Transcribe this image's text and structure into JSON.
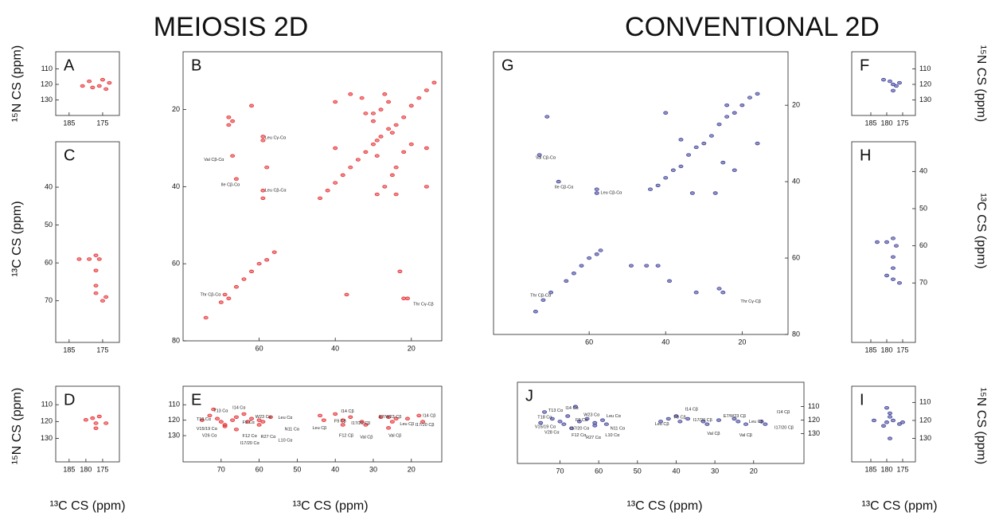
{
  "headers": [
    "MEIOSIS 2D",
    "CONVENTIONAL 2D"
  ],
  "axis_labels": {
    "n15": "¹⁵N CS (ppm)",
    "c13": "¹³C CS (ppm)"
  },
  "chart_data": [
    {
      "type": "scatter",
      "label": "A",
      "xlim": [
        189,
        170
      ],
      "ylim": [
        99,
        140
      ],
      "xticks": [
        185,
        175
      ],
      "yticks": [
        110,
        120,
        130
      ],
      "series": [
        {
          "color": "#e52b2f",
          "x": [
            179,
            178,
            176,
            175,
            174,
            173,
            181
          ],
          "y": [
            118,
            122,
            121,
            117,
            123,
            119,
            121
          ]
        }
      ]
    },
    {
      "type": "scatter",
      "label": "B",
      "xlim": [
        80,
        12
      ],
      "ylim": [
        5,
        80
      ],
      "xticks": [
        60,
        40,
        20
      ],
      "yticks": [
        20,
        40,
        60,
        80
      ],
      "series": [
        {
          "color": "#e52b2f",
          "x": [
            44,
            42,
            40,
            38,
            36,
            34,
            32,
            30,
            28,
            26,
            24,
            22,
            20,
            18,
            16,
            14,
            66,
            64,
            62,
            60,
            58,
            56,
            70,
            68,
            69,
            74,
            68,
            67,
            68,
            67,
            66,
            59,
            59,
            59,
            59,
            62,
            58,
            40,
            40,
            36,
            33,
            32,
            30,
            30,
            28,
            26,
            24,
            24,
            25,
            29,
            29,
            29,
            20,
            16,
            16,
            27,
            27,
            22,
            37,
            23,
            22,
            21,
            25
          ],
          "y": [
            43,
            41,
            39,
            37,
            35,
            33,
            31,
            29,
            27,
            25,
            24,
            22,
            19,
            17,
            15,
            13,
            66,
            64,
            62,
            60,
            59,
            57,
            70,
            69,
            68,
            74,
            22,
            23,
            24,
            32,
            38,
            27,
            28,
            41,
            43,
            19,
            35,
            18,
            30,
            16,
            17,
            21,
            21,
            23,
            20,
            18,
            42,
            35,
            37,
            42,
            28,
            32,
            29,
            30,
            40,
            16,
            40,
            31,
            68,
            62,
            69,
            69,
            26
          ]
        }
      ],
      "annotations": [
        {
          "text": "Leu Cγ-Cα",
          "x": 58.5,
          "y": 27.3
        },
        {
          "text": "Val Cβ-Cα",
          "x": 74.5,
          "y": 33
        },
        {
          "text": "Ile Cβ-Cα",
          "x": 70,
          "y": 39.5
        },
        {
          "text": "Leu Cβ-Cα",
          "x": 58.5,
          "y": 41
        },
        {
          "text": "Thr Cβ-Cα",
          "x": 75.5,
          "y": 68
        },
        {
          "text": "Thr Cγ-Cβ",
          "x": 19.5,
          "y": 70.5
        }
      ]
    },
    {
      "type": "scatter",
      "label": "C",
      "xlim": [
        189,
        170
      ],
      "ylim": [
        28,
        81
      ],
      "xticks": [
        185,
        175
      ],
      "yticks": [
        40,
        50,
        60,
        70
      ],
      "series": [
        {
          "color": "#e52b2f",
          "x": [
            177,
            179,
            176,
            177,
            177,
            177,
            175,
            174,
            182
          ],
          "y": [
            58,
            59,
            59,
            62,
            66,
            68,
            70,
            69,
            59
          ]
        }
      ]
    },
    {
      "type": "scatter",
      "label": "D",
      "xlim": [
        189,
        170
      ],
      "ylim": [
        99,
        144
      ],
      "xticks": [
        185,
        180,
        175
      ],
      "yticks": [
        110,
        120,
        130
      ],
      "series": [
        {
          "color": "#e52b2f",
          "x": [
            178,
            177,
            177,
            176,
            180,
            174
          ],
          "y": [
            118,
            121,
            124,
            117,
            119,
            121
          ]
        }
      ]
    },
    {
      "type": "scatter",
      "label": "E",
      "xlim": [
        80,
        12
      ],
      "ylim": [
        98,
        147
      ],
      "xticks": [
        70,
        60,
        50,
        40,
        30,
        20
      ],
      "yticks": [
        110,
        120,
        130
      ],
      "series": [
        {
          "color": "#e52b2f",
          "x": [
            73,
            71,
            70,
            69,
            69,
            67,
            66,
            64,
            63,
            62,
            60,
            60,
            59,
            57,
            75,
            72,
            66,
            44,
            43,
            40,
            38,
            38,
            36,
            33,
            32,
            28,
            26,
            25,
            24,
            21,
            18,
            17,
            26
          ],
          "y": [
            117,
            119,
            121,
            123,
            124,
            120,
            118,
            116,
            121,
            119,
            120,
            123,
            121,
            118,
            120,
            113,
            126,
            117,
            120,
            116,
            120,
            123,
            118,
            121,
            123,
            118,
            118,
            121,
            119,
            119,
            117,
            121,
            125
          ]
        }
      ],
      "annotations": [
        {
          "text": "T13 Cα",
          "x": 72,
          "y": 114
        },
        {
          "text": "I14 Cα",
          "x": 67,
          "y": 112
        },
        {
          "text": "T18 Cα",
          "x": 76.5,
          "y": 119.5
        },
        {
          "text": "F9 Cα",
          "x": 64.4,
          "y": 121.6
        },
        {
          "text": "W23 Cα",
          "x": 61,
          "y": 118
        },
        {
          "text": "Leu Cα",
          "x": 55,
          "y": 118.5
        },
        {
          "text": "V15/19 Cα",
          "x": 76.5,
          "y": 125.7
        },
        {
          "text": "V26 Cα",
          "x": 75,
          "y": 130
        },
        {
          "text": "F12 Cα",
          "x": 64.4,
          "y": 130.3
        },
        {
          "text": "R27 Cα",
          "x": 59.6,
          "y": 130.8
        },
        {
          "text": "N11 Cα",
          "x": 53.3,
          "y": 126
        },
        {
          "text": "I17/20 Cα",
          "x": 65,
          "y": 135
        },
        {
          "text": "L10 Cα",
          "x": 55,
          "y": 133
        },
        {
          "text": "I14 Cβ",
          "x": 38.5,
          "y": 114.4
        },
        {
          "text": "F9 Cβ",
          "x": 40.3,
          "y": 120.6
        },
        {
          "text": "E7/W23 Cβ",
          "x": 28.5,
          "y": 118
        },
        {
          "text": "Leu Cβ",
          "x": 46,
          "y": 125
        },
        {
          "text": "I17/20 Cβ",
          "x": 35.8,
          "y": 122
        },
        {
          "text": "F12 Cβ",
          "x": 39,
          "y": 130
        },
        {
          "text": "Val Cβ",
          "x": 33.5,
          "y": 131
        },
        {
          "text": "Leu Cβ",
          "x": 23,
          "y": 122.6
        },
        {
          "text": "Val Cβ",
          "x": 26,
          "y": 130
        },
        {
          "text": "I14 Cβ",
          "x": 17,
          "y": 117
        },
        {
          "text": "I17/20 Cβ",
          "x": 19,
          "y": 123
        }
      ]
    },
    {
      "type": "scatter",
      "label": "G",
      "xlim": [
        85,
        8
      ],
      "ylim": [
        6,
        80
      ],
      "xticks": [
        60,
        40,
        20
      ],
      "yticks": [
        20,
        40,
        60,
        80
      ],
      "series": [
        {
          "color": "#3d3f97",
          "x": [
            44,
            42,
            40,
            38,
            36,
            34,
            32,
            30,
            28,
            26,
            24,
            22,
            20,
            18,
            16,
            66,
            64,
            62,
            60,
            58,
            57,
            70,
            72,
            74,
            71,
            73,
            68,
            58,
            58,
            40,
            36,
            33,
            24,
            25,
            22,
            16,
            27,
            49,
            45,
            39,
            32,
            26,
            25,
            42
          ],
          "y": [
            42,
            41,
            39,
            37,
            36,
            33,
            31,
            30,
            28,
            25,
            23,
            22,
            20,
            18,
            17,
            66,
            64,
            62,
            60,
            59,
            58,
            69,
            71,
            74,
            23,
            33,
            40,
            42,
            43,
            22,
            29,
            43,
            20,
            35,
            37,
            30,
            43,
            62,
            62,
            66,
            69,
            68,
            69,
            62
          ]
        }
      ],
      "annotations": [
        {
          "text": "Val Cβ-Cα",
          "x": 74,
          "y": 33.7
        },
        {
          "text": "Ile Cβ-Cα",
          "x": 69,
          "y": 41.4
        },
        {
          "text": "Leu Cβ-Cα",
          "x": 57,
          "y": 42.9
        },
        {
          "text": "Thr Cβ-Cα",
          "x": 75.4,
          "y": 69.8
        },
        {
          "text": "Thr Cγ-Cβ",
          "x": 20.4,
          "y": 71.4
        }
      ]
    },
    {
      "type": "scatter",
      "label": "J",
      "xlim": [
        81,
        7
      ],
      "ylim": [
        92,
        152
      ],
      "xticks": [
        70,
        60,
        50,
        40,
        30,
        20
      ],
      "yticks": [
        110,
        120,
        130
      ],
      "series": [
        {
          "color": "#3d3f97",
          "x": [
            72,
            70,
            69,
            68,
            67,
            65,
            63,
            61,
            61,
            59,
            58,
            75,
            74,
            66,
            44,
            42,
            40,
            39,
            37,
            33,
            32,
            29,
            25,
            24,
            22,
            18,
            17
          ],
          "y": [
            119,
            121,
            123,
            117,
            126,
            121,
            119,
            122,
            124,
            120,
            123,
            122,
            114,
            110,
            121,
            119,
            117,
            121,
            119,
            121,
            123,
            120,
            119,
            121,
            123,
            121,
            123
          ]
        }
      ],
      "annotations": [
        {
          "text": "T13 Cα",
          "x": 73,
          "y": 113
        },
        {
          "text": "I14 Cα",
          "x": 68.6,
          "y": 111
        },
        {
          "text": "T18 Cα",
          "x": 75.8,
          "y": 118
        },
        {
          "text": "W23 Cα",
          "x": 63.9,
          "y": 116
        },
        {
          "text": "F9 Cα",
          "x": 66,
          "y": 120
        },
        {
          "text": "Leu Cα",
          "x": 58,
          "y": 117
        },
        {
          "text": "V15/19 Cα",
          "x": 76.5,
          "y": 125
        },
        {
          "text": "V28 Cα",
          "x": 74,
          "y": 129
        },
        {
          "text": "I17/20 Cα",
          "x": 67.4,
          "y": 126
        },
        {
          "text": "F12 Cα",
          "x": 67,
          "y": 131
        },
        {
          "text": "R27 Cα",
          "x": 63.3,
          "y": 133
        },
        {
          "text": "N11 Cα",
          "x": 57,
          "y": 126
        },
        {
          "text": "L10 Cα",
          "x": 58.3,
          "y": 131
        },
        {
          "text": "I14 Cβ",
          "x": 37.7,
          "y": 112
        },
        {
          "text": "F9 Cβ",
          "x": 40.6,
          "y": 118
        },
        {
          "text": "E7/W23 Cβ",
          "x": 27.8,
          "y": 117
        },
        {
          "text": "I17/20 Cβ",
          "x": 35.6,
          "y": 120
        },
        {
          "text": "Leu Cβ",
          "x": 45.5,
          "y": 123
        },
        {
          "text": "Leu Cβ",
          "x": 21.2,
          "y": 121
        },
        {
          "text": "Val Cβ",
          "x": 32,
          "y": 130
        },
        {
          "text": "Val Cβ",
          "x": 23.7,
          "y": 131
        },
        {
          "text": "I14 Cβ",
          "x": 14,
          "y": 114
        },
        {
          "text": "I17/20 Cβ",
          "x": 14.6,
          "y": 125.5
        }
      ]
    },
    {
      "type": "scatter",
      "label": "F",
      "xlim": [
        191,
        171
      ],
      "ylim": [
        99,
        140
      ],
      "xticks": [
        185,
        180,
        175
      ],
      "yticks": [
        110,
        120,
        130
      ],
      "series": [
        {
          "color": "#3d3f97",
          "x": [
            179,
            178,
            176,
            181,
            178,
            177
          ],
          "y": [
            118,
            120,
            119,
            117,
            124,
            121
          ]
        }
      ]
    },
    {
      "type": "scatter",
      "label": "H",
      "xlim": [
        191,
        171
      ],
      "ylim": [
        32,
        86
      ],
      "xticks": [
        185,
        180,
        175
      ],
      "yticks": [
        40,
        50,
        60,
        70
      ],
      "series": [
        {
          "color": "#3d3f97",
          "x": [
            178,
            180,
            177,
            178,
            178,
            178,
            176,
            180,
            183
          ],
          "y": [
            58,
            59,
            60,
            63,
            66,
            69,
            70,
            68,
            59
          ]
        }
      ]
    },
    {
      "type": "scatter",
      "label": "I",
      "xlim": [
        191,
        171
      ],
      "ylim": [
        101,
        143
      ],
      "xticks": [
        185,
        180,
        175
      ],
      "yticks": [
        110,
        120,
        130
      ],
      "series": [
        {
          "color": "#3d3f97",
          "x": [
            179,
            180,
            178,
            176,
            184,
            181,
            179,
            180,
            179,
            175
          ],
          "y": [
            118,
            121,
            120,
            122,
            120,
            123,
            116,
            113,
            130,
            121
          ]
        }
      ]
    }
  ]
}
